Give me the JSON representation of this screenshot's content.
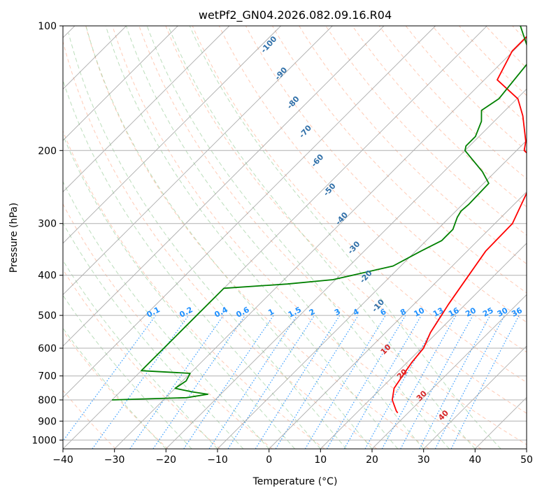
{
  "chart_data": {
    "type": "line",
    "title": "wetPf2_GN04.2026.082.09.16.R04",
    "xlabel": "Temperature (°C)",
    "ylabel": "Pressure (hPa)",
    "xlim": [
      -40,
      50
    ],
    "ylim": [
      1050,
      100
    ],
    "yscale": "log",
    "x_ticks": [
      -40,
      -30,
      -20,
      -10,
      0,
      10,
      20,
      30,
      40,
      50
    ],
    "y_ticks": [
      1000,
      900,
      800,
      700,
      600,
      500,
      400,
      300,
      200,
      100
    ],
    "grid": "horizontal",
    "skew": "skew-T",
    "series": [
      {
        "color": "#ff0000",
        "kind": "temperature",
        "points": [
          [
            18,
            860
          ],
          [
            17.3,
            850
          ],
          [
            14.4,
            800
          ],
          [
            12.5,
            750
          ],
          [
            11.7,
            700
          ],
          [
            10.9,
            650
          ],
          [
            10.4,
            600
          ],
          [
            8.7,
            550
          ],
          [
            7.5,
            500
          ],
          [
            6.7,
            470
          ],
          [
            5.0,
            400
          ],
          [
            3.6,
            350
          ],
          [
            3.4,
            300
          ],
          [
            0.0,
            250
          ],
          [
            -2.0,
            230
          ],
          [
            -5.0,
            210
          ],
          [
            -8.5,
            200
          ],
          [
            -10,
            190
          ],
          [
            -15.5,
            165
          ],
          [
            -19.8,
            150
          ],
          [
            -27.5,
            135
          ],
          [
            -30.2,
            115
          ],
          [
            -30.2,
            100
          ]
        ]
      },
      {
        "color": "#008000",
        "kind": "dewpoint",
        "points": [
          [
            -40,
            800
          ],
          [
            -26,
            790
          ],
          [
            -22.5,
            775
          ],
          [
            -26,
            765
          ],
          [
            -30,
            750
          ],
          [
            -29.3,
            720
          ],
          [
            -30,
            690
          ],
          [
            -40,
            680
          ],
          [
            -40,
            430
          ],
          [
            -28.5,
            420
          ],
          [
            -20.5,
            410
          ],
          [
            -11.5,
            380
          ],
          [
            -9,
            350
          ],
          [
            -7,
            330
          ],
          [
            -7,
            310
          ],
          [
            -8.5,
            290
          ],
          [
            -9,
            280
          ],
          [
            -8.8,
            270
          ],
          [
            -9,
            240
          ],
          [
            -12.5,
            225
          ],
          [
            -20,
            200
          ],
          [
            -20.7,
            195
          ],
          [
            -20.7,
            185
          ],
          [
            -22.5,
            170
          ],
          [
            -24.6,
            160
          ],
          [
            -23.5,
            150
          ],
          [
            -25,
            120
          ],
          [
            -33.5,
            100
          ]
        ]
      }
    ],
    "reference_lines": {
      "isotherms": {
        "color": "#999999",
        "start": -200,
        "stop": 50,
        "step": 10
      },
      "dry_adiabats": {
        "color": "#ffa07a",
        "labels": [
          10,
          20,
          30,
          40
        ]
      },
      "moist_adiabats": {
        "color": "#90c890"
      },
      "mixing_ratio": {
        "color": "#1e90ff",
        "labels": [
          0.1,
          0.2,
          0.4,
          0.6,
          1,
          1.5,
          2,
          3,
          4,
          6,
          8,
          10,
          13,
          16,
          20,
          25,
          30,
          36
        ]
      },
      "isentropes_labels": [
        -100,
        -90,
        -80,
        -70,
        -60,
        -50,
        -40,
        -30,
        -20,
        -10
      ]
    }
  }
}
